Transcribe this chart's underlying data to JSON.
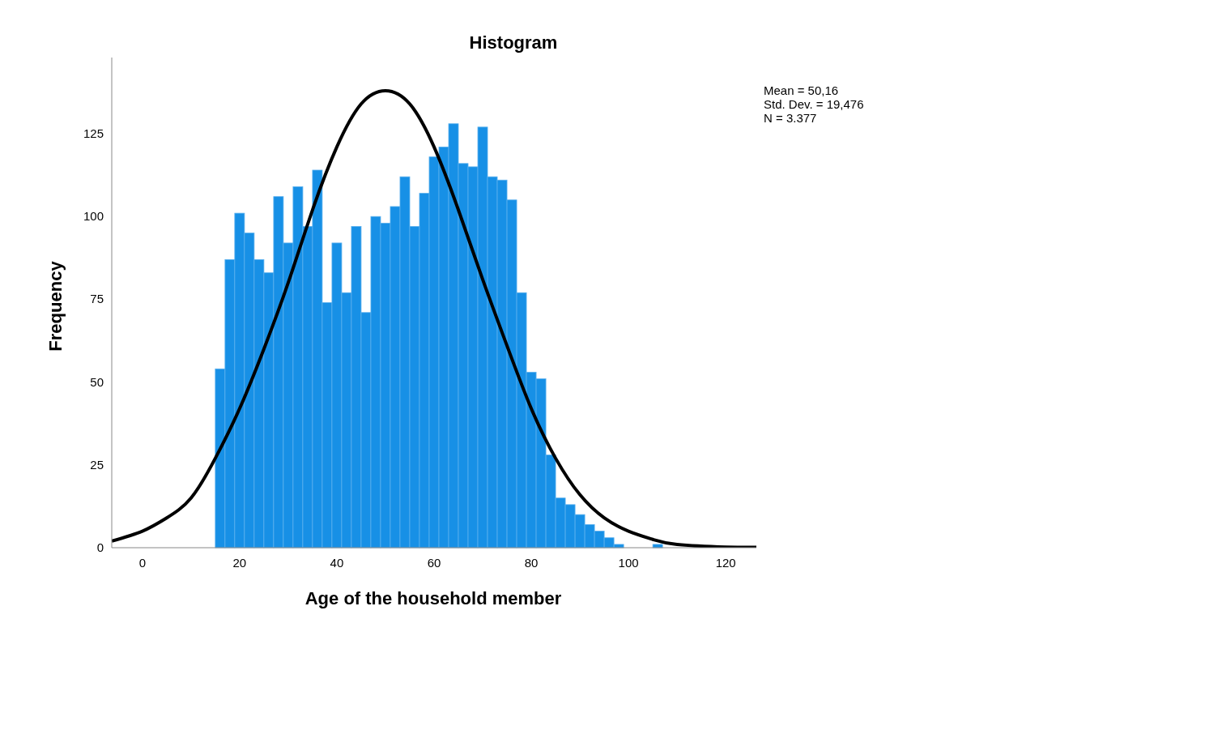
{
  "chart_data": {
    "type": "histogram",
    "title": "Histogram",
    "xlabel": "Age of the household member",
    "ylabel": "Frequency",
    "bins": [
      15,
      17,
      19,
      21,
      23,
      25,
      27,
      29,
      31,
      33,
      35,
      37,
      39,
      41,
      43,
      45,
      47,
      49,
      51,
      53,
      55,
      57,
      59,
      61,
      63,
      65,
      67,
      69,
      71,
      73,
      75,
      77,
      79,
      81,
      83,
      85,
      87,
      89,
      91,
      93,
      95,
      97,
      99,
      101,
      103,
      105,
      107
    ],
    "values": [
      54,
      87,
      101,
      95,
      87,
      83,
      106,
      92,
      109,
      97,
      114,
      74,
      92,
      77,
      97,
      71,
      100,
      98,
      103,
      112,
      97,
      107,
      118,
      121,
      128,
      116,
      115,
      127,
      112,
      111,
      105,
      77,
      53,
      51,
      28,
      15,
      13,
      10,
      7,
      5,
      3,
      1,
      0,
      0,
      0,
      1
    ],
    "color": "#1790e6",
    "series": [
      {
        "type": "line",
        "color": "#000000",
        "x": [
          -6.3,
          0,
          5,
          10,
          15,
          20,
          25,
          30,
          35,
          40,
          45,
          50,
          55,
          60,
          65,
          70,
          75,
          80,
          85,
          90,
          95,
          100,
          105,
          110,
          120,
          126.3
        ],
        "values": [
          2,
          5,
          9,
          15,
          27,
          42,
          60,
          80,
          102,
          121,
          134,
          138,
          134,
          121,
          102,
          81,
          61,
          42,
          27,
          16,
          9,
          5,
          2.5,
          1,
          0.2,
          0.1
        ]
      }
    ],
    "xlim": [
      -6.3,
      126.3
    ],
    "xticks": [
      0,
      20,
      40,
      60,
      80,
      100,
      120
    ],
    "ylim": [
      0,
      148
    ],
    "yticks": [
      0,
      25,
      50,
      75,
      100,
      125
    ],
    "annotations": [
      "Mean = 50,16",
      "Std. Dev. = 19,476",
      "N = 3.377"
    ]
  }
}
